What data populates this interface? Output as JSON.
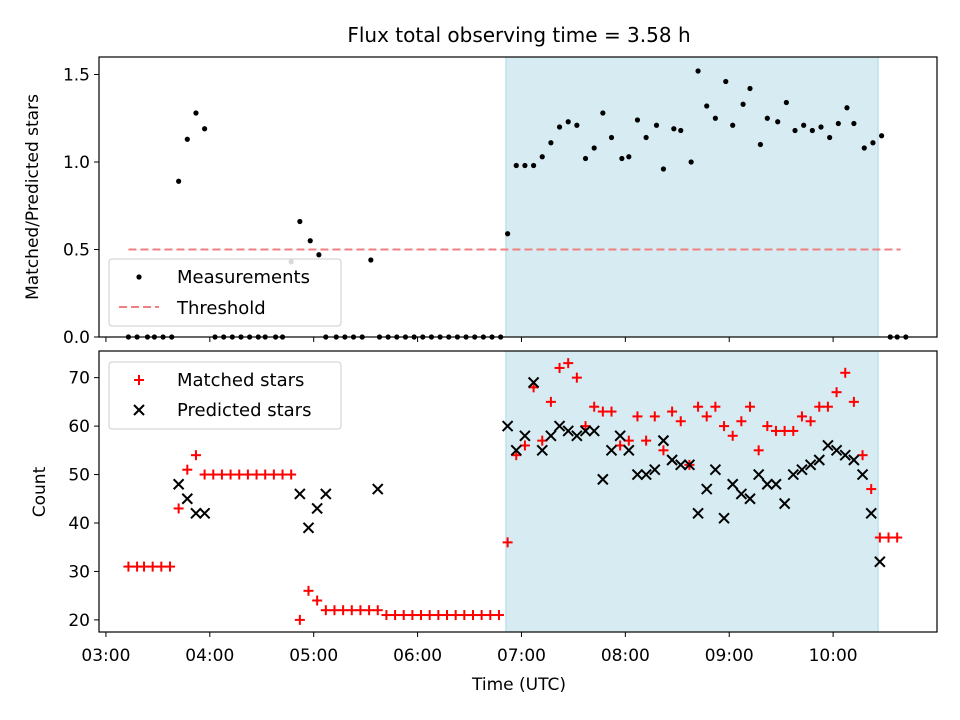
{
  "chart_data": [
    {
      "type": "scatter",
      "title": "Flux total observing time = 3.58 h",
      "xlabel": "",
      "ylabel": "Matched/Predicted stars",
      "xlim": [
        "02:56",
        "11:00"
      ],
      "ylim": [
        0,
        1.6
      ],
      "yticks": [
        0.0,
        0.5,
        1.0,
        1.5
      ],
      "grid": false,
      "legend_position": "lower-left",
      "shaded_span": [
        "06:51",
        "10:26"
      ],
      "threshold": {
        "name": "Threshold",
        "y": 0.5,
        "x_start": "03:13",
        "x_end": "10:39",
        "color": "#f08080",
        "style": "dashed"
      },
      "series": [
        {
          "name": "Measurements",
          "color": "#000000",
          "x": [
            "03:13",
            "03:18",
            "03:24",
            "03:28",
            "03:33",
            "03:38",
            "03:42",
            "03:47",
            "03:52",
            "03:57",
            "04:03",
            "04:08",
            "04:13",
            "04:18",
            "04:23",
            "04:28",
            "04:32",
            "04:38",
            "04:42",
            "04:47",
            "04:52",
            "04:58",
            "05:03",
            "05:07",
            "05:13",
            "05:18",
            "05:23",
            "05:28",
            "05:33",
            "05:38",
            "05:43",
            "05:48",
            "05:53",
            "05:58",
            "06:03",
            "06:08",
            "06:13",
            "06:18",
            "06:23",
            "06:28",
            "06:33",
            "06:38",
            "06:43",
            "06:48",
            "06:52",
            "06:57",
            "07:02",
            "07:07",
            "07:12",
            "07:17",
            "07:22",
            "07:27",
            "07:32",
            "07:37",
            "07:42",
            "07:47",
            "07:52",
            "07:58",
            "08:02",
            "08:07",
            "08:12",
            "08:18",
            "08:22",
            "08:28",
            "08:32",
            "08:38",
            "08:42",
            "08:47",
            "08:52",
            "08:58",
            "09:02",
            "09:08",
            "09:12",
            "09:18",
            "09:22",
            "09:28",
            "09:33",
            "09:38",
            "09:43",
            "09:48",
            "09:53",
            "09:58",
            "10:03",
            "10:08",
            "10:12",
            "10:18",
            "10:23",
            "10:28",
            "10:33",
            "10:37",
            "10:42"
          ],
          "y": [
            0,
            0,
            0,
            0,
            0,
            0,
            0.89,
            1.13,
            1.28,
            1.19,
            0,
            0,
            0,
            0,
            0,
            0,
            0,
            0,
            0,
            0.43,
            0.66,
            0.55,
            0.47,
            0,
            0,
            0,
            0,
            0,
            0.44,
            0,
            0,
            0,
            0,
            0,
            0,
            0,
            0,
            0,
            0,
            0,
            0,
            0,
            0,
            0,
            0.59,
            0.98,
            0.98,
            0.98,
            1.03,
            1.11,
            1.2,
            1.23,
            1.21,
            1.02,
            1.08,
            1.28,
            1.14,
            1.02,
            1.03,
            1.24,
            1.14,
            1.21,
            0.96,
            1.19,
            1.18,
            1.0,
            1.52,
            1.32,
            1.25,
            1.46,
            1.21,
            1.33,
            1.42,
            1.1,
            1.25,
            1.23,
            1.34,
            1.18,
            1.21,
            1.18,
            1.2,
            1.14,
            1.22,
            1.31,
            1.22,
            1.08,
            1.11,
            1.15,
            0,
            0,
            0
          ]
        }
      ]
    },
    {
      "type": "scatter",
      "title": "",
      "xlabel": "Time (UTC)",
      "ylabel": "Count",
      "xlim": [
        "02:56",
        "11:00"
      ],
      "ylim": [
        17.5,
        75.5
      ],
      "yticks": [
        20,
        30,
        40,
        50,
        60,
        70
      ],
      "xticks": [
        "03:00",
        "04:00",
        "05:00",
        "06:00",
        "07:00",
        "08:00",
        "09:00",
        "10:00"
      ],
      "grid": false,
      "legend_position": "upper-left",
      "shaded_span": [
        "06:51",
        "10:26"
      ],
      "series": [
        {
          "name": "Matched stars",
          "marker": "plus",
          "color": "#ff0000",
          "x": [
            "03:13",
            "03:18",
            "03:22",
            "03:27",
            "03:32",
            "03:37",
            "03:42",
            "03:47",
            "03:52",
            "03:57",
            "04:02",
            "04:07",
            "04:12",
            "04:17",
            "04:22",
            "04:27",
            "04:32",
            "04:37",
            "04:42",
            "04:47",
            "04:52",
            "04:57",
            "05:02",
            "05:07",
            "05:12",
            "05:17",
            "05:22",
            "05:27",
            "05:32",
            "05:37",
            "05:42",
            "05:47",
            "05:52",
            "05:57",
            "06:02",
            "06:07",
            "06:12",
            "06:17",
            "06:22",
            "06:27",
            "06:32",
            "06:37",
            "06:42",
            "06:47",
            "06:52",
            "06:57",
            "07:02",
            "07:07",
            "07:12",
            "07:17",
            "07:22",
            "07:27",
            "07:32",
            "07:37",
            "07:42",
            "07:47",
            "07:52",
            "07:57",
            "08:02",
            "08:07",
            "08:12",
            "08:17",
            "08:22",
            "08:27",
            "08:32",
            "08:37",
            "08:42",
            "08:47",
            "08:52",
            "08:57",
            "09:02",
            "09:07",
            "09:12",
            "09:17",
            "09:22",
            "09:27",
            "09:32",
            "09:37",
            "09:42",
            "09:47",
            "09:52",
            "09:57",
            "10:02",
            "10:07",
            "10:12",
            "10:17",
            "10:22",
            "10:27",
            "10:32",
            "10:37"
          ],
          "y": [
            31,
            31,
            31,
            31,
            31,
            31,
            43,
            51,
            54,
            50,
            50,
            50,
            50,
            50,
            50,
            50,
            50,
            50,
            50,
            50,
            20,
            26,
            24,
            22,
            22,
            22,
            22,
            22,
            22,
            22,
            21,
            21,
            21,
            21,
            21,
            21,
            21,
            21,
            21,
            21,
            21,
            21,
            21,
            21,
            36,
            54,
            56,
            68,
            57,
            65,
            72,
            73,
            70,
            60,
            64,
            63,
            63,
            56,
            57,
            62,
            57,
            62,
            55,
            63,
            61,
            52,
            64,
            62,
            64,
            60,
            58,
            61,
            64,
            55,
            60,
            59,
            59,
            59,
            62,
            61,
            64,
            64,
            67,
            71,
            65,
            54,
            47,
            37,
            37,
            37
          ]
        },
        {
          "name": "Predicted stars",
          "marker": "x",
          "color": "#000000",
          "x": [
            "03:42",
            "03:47",
            "03:52",
            "03:57",
            "04:52",
            "04:57",
            "05:02",
            "05:07",
            "05:37",
            "06:52",
            "06:57",
            "07:02",
            "07:07",
            "07:12",
            "07:17",
            "07:22",
            "07:27",
            "07:32",
            "07:37",
            "07:42",
            "07:47",
            "07:52",
            "07:57",
            "08:02",
            "08:07",
            "08:12",
            "08:17",
            "08:22",
            "08:27",
            "08:32",
            "08:37",
            "08:42",
            "08:47",
            "08:52",
            "08:57",
            "09:02",
            "09:07",
            "09:12",
            "09:17",
            "09:22",
            "09:27",
            "09:32",
            "09:37",
            "09:42",
            "09:47",
            "09:52",
            "09:57",
            "10:02",
            "10:07",
            "10:12",
            "10:17",
            "10:22",
            "10:27"
          ],
          "y": [
            48,
            45,
            42,
            42,
            46,
            39,
            43,
            46,
            47,
            60,
            55,
            58,
            69,
            55,
            58,
            60,
            59,
            58,
            59,
            59,
            49,
            55,
            58,
            55,
            50,
            50,
            51,
            57,
            53,
            52,
            52,
            42,
            47,
            51,
            41,
            48,
            46,
            45,
            50,
            48,
            48,
            44,
            50,
            51,
            52,
            53,
            56,
            55,
            54,
            53,
            50,
            42,
            32
          ]
        }
      ]
    }
  ]
}
